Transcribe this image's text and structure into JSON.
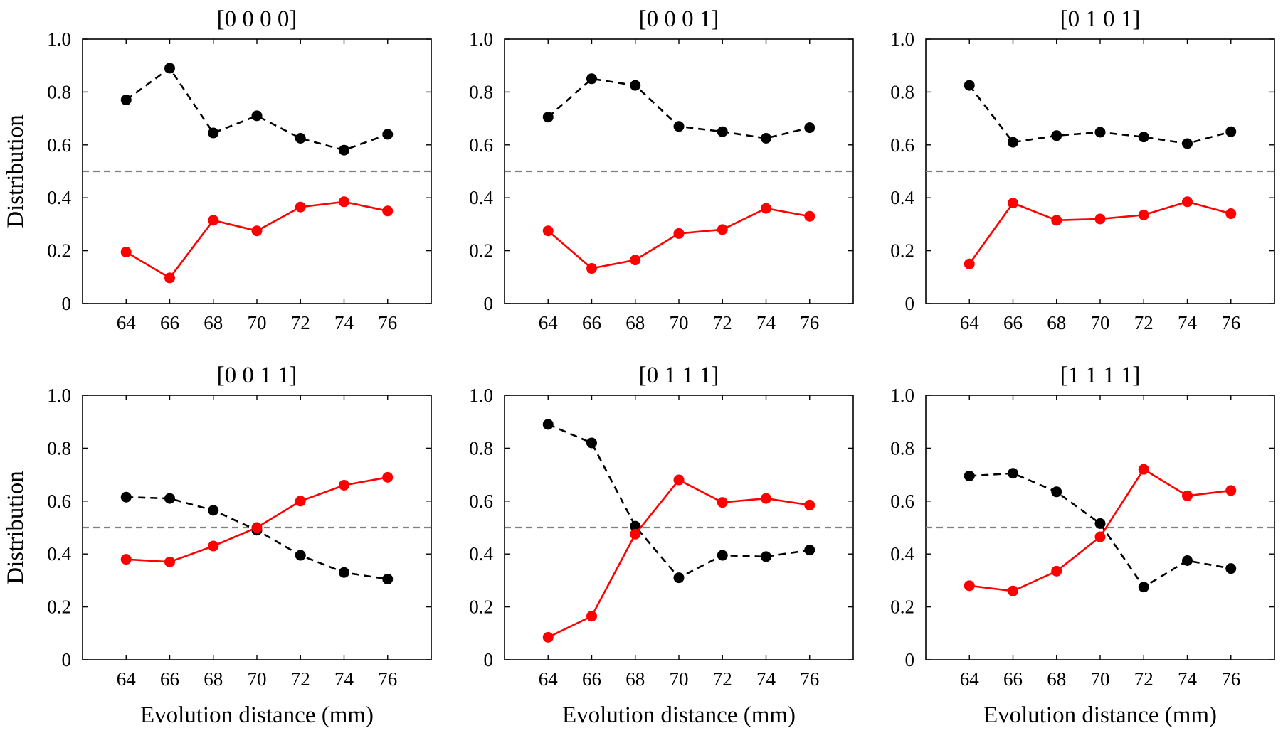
{
  "figure": {
    "ylabel": "Distribution",
    "xlabel": "Evolution distance (mm)",
    "threshold": 0.5,
    "x_ticks": [
      64,
      66,
      68,
      70,
      72,
      74,
      76
    ],
    "y_ticks": [
      "0",
      "0.2",
      "0.4",
      "0.6",
      "0.8",
      "1.0"
    ]
  },
  "chart_data": [
    {
      "type": "line",
      "title": "[0 0 0 0]",
      "x": [
        64,
        66,
        68,
        70,
        72,
        74,
        76
      ],
      "xlim": [
        62,
        78
      ],
      "ylim": [
        0,
        1
      ],
      "series": [
        {
          "style": "black-dashed",
          "color": "#000000",
          "values": [
            0.77,
            0.89,
            0.645,
            0.71,
            0.625,
            0.58,
            0.64
          ]
        },
        {
          "style": "red-solid",
          "color": "#ff0000",
          "values": [
            0.195,
            0.097,
            0.315,
            0.275,
            0.365,
            0.385,
            0.35
          ]
        }
      ],
      "reference_line": 0.5
    },
    {
      "type": "line",
      "title": "[0 0 0 1]",
      "x": [
        64,
        66,
        68,
        70,
        72,
        74,
        76
      ],
      "xlim": [
        62,
        78
      ],
      "ylim": [
        0,
        1
      ],
      "series": [
        {
          "style": "black-dashed",
          "color": "#000000",
          "values": [
            0.705,
            0.85,
            0.825,
            0.67,
            0.65,
            0.625,
            0.665
          ]
        },
        {
          "style": "red-solid",
          "color": "#ff0000",
          "values": [
            0.275,
            0.133,
            0.165,
            0.265,
            0.28,
            0.36,
            0.33
          ]
        }
      ],
      "reference_line": 0.5
    },
    {
      "type": "line",
      "title": "[0 1 0 1]",
      "x": [
        64,
        66,
        68,
        70,
        72,
        74,
        76
      ],
      "xlim": [
        62,
        78
      ],
      "ylim": [
        0,
        1
      ],
      "series": [
        {
          "style": "black-dashed",
          "color": "#000000",
          "values": [
            0.825,
            0.61,
            0.635,
            0.648,
            0.63,
            0.605,
            0.65
          ]
        },
        {
          "style": "red-solid",
          "color": "#ff0000",
          "values": [
            0.15,
            0.38,
            0.315,
            0.32,
            0.335,
            0.385,
            0.34
          ]
        }
      ],
      "reference_line": 0.5
    },
    {
      "type": "line",
      "title": "[0 0 1 1]",
      "x": [
        64,
        66,
        68,
        70,
        72,
        74,
        76
      ],
      "xlim": [
        62,
        78
      ],
      "ylim": [
        0,
        1
      ],
      "series": [
        {
          "style": "black-dashed",
          "color": "#000000",
          "values": [
            0.615,
            0.61,
            0.565,
            0.49,
            0.395,
            0.33,
            0.305
          ]
        },
        {
          "style": "red-solid",
          "color": "#ff0000",
          "values": [
            0.38,
            0.37,
            0.43,
            0.5,
            0.6,
            0.66,
            0.69
          ]
        }
      ],
      "reference_line": 0.5
    },
    {
      "type": "line",
      "title": "[0 1 1 1]",
      "x": [
        64,
        66,
        68,
        70,
        72,
        74,
        76
      ],
      "xlim": [
        62,
        78
      ],
      "ylim": [
        0,
        1
      ],
      "series": [
        {
          "style": "black-dashed",
          "color": "#000000",
          "values": [
            0.89,
            0.82,
            0.505,
            0.31,
            0.395,
            0.39,
            0.415
          ]
        },
        {
          "style": "red-solid",
          "color": "#ff0000",
          "values": [
            0.085,
            0.165,
            0.475,
            0.68,
            0.595,
            0.61,
            0.585
          ]
        }
      ],
      "reference_line": 0.5
    },
    {
      "type": "line",
      "title": "[1 1 1 1]",
      "x": [
        64,
        66,
        68,
        70,
        72,
        74,
        76
      ],
      "xlim": [
        62,
        78
      ],
      "ylim": [
        0,
        1
      ],
      "series": [
        {
          "style": "black-dashed",
          "color": "#000000",
          "values": [
            0.695,
            0.705,
            0.635,
            0.515,
            0.275,
            0.375,
            0.345
          ]
        },
        {
          "style": "red-solid",
          "color": "#ff0000",
          "values": [
            0.28,
            0.26,
            0.335,
            0.465,
            0.72,
            0.62,
            0.64
          ]
        }
      ],
      "reference_line": 0.5
    }
  ]
}
